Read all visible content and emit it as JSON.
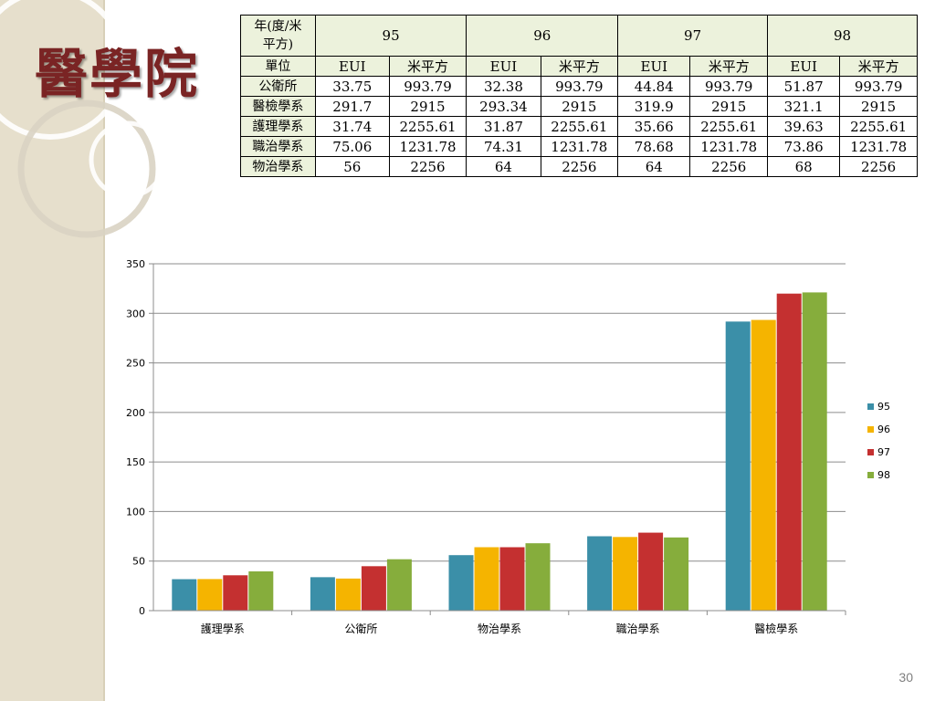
{
  "slide": {
    "title": "醫學院",
    "page_number": "30"
  },
  "table": {
    "corner_label_line1": "年(度/米",
    "corner_label_line2": "平方)",
    "years": [
      "95",
      "96",
      "97",
      "98"
    ],
    "unit_row_label": "單位",
    "unit_labels": [
      "EUI",
      "米平方"
    ],
    "rows": [
      {
        "label": "公衛所",
        "values": [
          "33.75",
          "993.79",
          "32.38",
          "993.79",
          "44.84",
          "993.79",
          "51.87",
          "993.79"
        ]
      },
      {
        "label": "醫檢學系",
        "values": [
          "291.7",
          "2915",
          "293.34",
          "2915",
          "319.9",
          "2915",
          "321.1",
          "2915"
        ]
      },
      {
        "label": "護理學系",
        "values": [
          "31.74",
          "2255.61",
          "31.87",
          "2255.61",
          "35.66",
          "2255.61",
          "39.63",
          "2255.61"
        ]
      },
      {
        "label": "職治學系",
        "values": [
          "75.06",
          "1231.78",
          "74.31",
          "1231.78",
          "78.68",
          "1231.78",
          "73.86",
          "1231.78"
        ]
      },
      {
        "label": "物治學系",
        "values": [
          "56",
          "2256",
          "64",
          "2256",
          "64",
          "2256",
          "68",
          "2256"
        ]
      }
    ]
  },
  "chart_data": {
    "type": "bar",
    "title": "",
    "xlabel": "",
    "ylabel": "",
    "ylim": [
      0,
      350
    ],
    "yticks": [
      0,
      50,
      100,
      150,
      200,
      250,
      300,
      350
    ],
    "grid": true,
    "legend_position": "right",
    "categories": [
      "護理學系",
      "公衛所",
      "物治學系",
      "職治學系",
      "醫檢學系"
    ],
    "series": [
      {
        "name": "95",
        "color": "#3b8fa8",
        "values": [
          31.74,
          33.75,
          56,
          75.06,
          291.7
        ]
      },
      {
        "name": "96",
        "color": "#f5b400",
        "values": [
          31.87,
          32.38,
          64,
          74.31,
          293.34
        ]
      },
      {
        "name": "97",
        "color": "#c43030",
        "values": [
          35.66,
          44.84,
          64,
          78.68,
          319.9
        ]
      },
      {
        "name": "98",
        "color": "#86ad3c",
        "values": [
          39.63,
          51.87,
          68,
          73.86,
          321.1
        ]
      }
    ]
  }
}
